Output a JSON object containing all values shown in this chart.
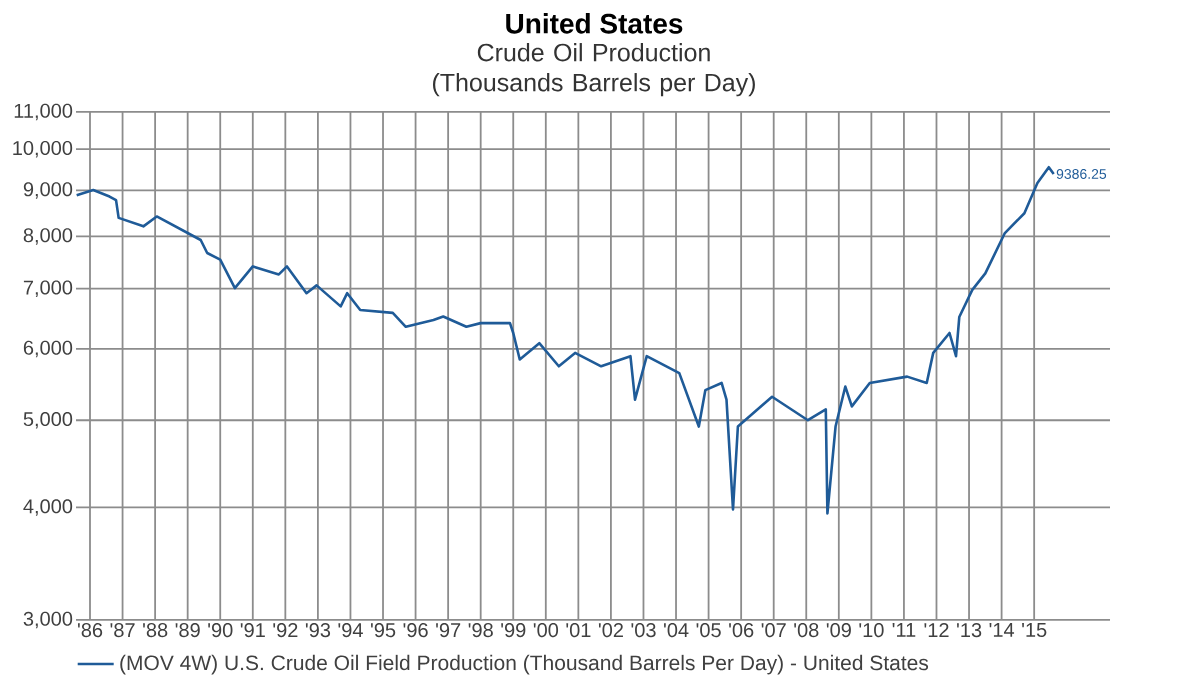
{
  "chart_data": {
    "type": "line",
    "title": "United States",
    "subtitle": "Crude Oil Production (Thousands Barrels per Day)",
    "x": [
      1985.59,
      1986.1,
      1986.6,
      1986.8,
      1986.88,
      1987.64,
      1988.05,
      1989.4,
      1989.6,
      1990.0,
      1990.45,
      1991.0,
      1991.8,
      1992.05,
      1992.65,
      1992.96,
      1993.7,
      1993.9,
      1994.3,
      1995.3,
      1995.7,
      1996.55,
      1996.85,
      1997.56,
      1998.0,
      1998.9,
      1999.0,
      1999.2,
      1999.8,
      2000.4,
      2000.9,
      2001.7,
      2002.6,
      2002.74,
      2003.1,
      2004.1,
      2004.7,
      2004.9,
      2005.4,
      2005.55,
      2005.75,
      2005.9,
      2006.95,
      2008.05,
      2008.6,
      2008.65,
      2008.9,
      2009.2,
      2009.4,
      2009.95,
      2011.1,
      2011.7,
      2011.9,
      2012.4,
      2012.6,
      2012.7,
      2013.1,
      2013.5,
      2014.1,
      2014.7,
      2015.1,
      2015.45,
      2015.6
    ],
    "series": [
      {
        "name": "(MOV 4W) U.S. Crude Oil Field Production (Thousand Barrels Per Day) - United States",
        "color": "#1f5b98",
        "values": [
          8890,
          9010,
          8860,
          8780,
          8390,
          8210,
          8420,
          7930,
          7670,
          7540,
          7010,
          7410,
          7260,
          7410,
          6920,
          7060,
          6690,
          6920,
          6630,
          6580,
          6350,
          6460,
          6520,
          6350,
          6410,
          6410,
          6250,
          5840,
          6090,
          5740,
          5940,
          5740,
          5890,
          5270,
          5890,
          5640,
          4920,
          5400,
          5500,
          5270,
          3980,
          4920,
          5310,
          5000,
          5140,
          3940,
          4920,
          5450,
          5180,
          5500,
          5590,
          5500,
          5940,
          6250,
          5890,
          6510,
          6980,
          7280,
          8070,
          8490,
          9170,
          9550,
          9386.25
        ]
      }
    ],
    "annotations": [
      {
        "text": "9386.25",
        "x": 2015.6,
        "y": 9386.25
      }
    ],
    "log": "y",
    "xlim": [
      1985.57,
      2017.33
    ],
    "ylim": [
      3000,
      11000
    ],
    "yticks": [
      {
        "value": 3000,
        "label": "3,000"
      },
      {
        "value": 4000,
        "label": "4,000"
      },
      {
        "value": 5000,
        "label": "5,000"
      },
      {
        "value": 6000,
        "label": "6,000"
      },
      {
        "value": 7000,
        "label": "7,000"
      },
      {
        "value": 8000,
        "label": "8,000"
      },
      {
        "value": 9000,
        "label": "9,000"
      },
      {
        "value": 10000,
        "label": "10,000"
      },
      {
        "value": 11000,
        "label": "11,000"
      }
    ],
    "xticks": [
      {
        "value": 1986,
        "label": "'86"
      },
      {
        "value": 1987,
        "label": "'87"
      },
      {
        "value": 1988,
        "label": "'88"
      },
      {
        "value": 1989,
        "label": "'89"
      },
      {
        "value": 1990,
        "label": "'90"
      },
      {
        "value": 1991,
        "label": "'91"
      },
      {
        "value": 1992,
        "label": "'92"
      },
      {
        "value": 1993,
        "label": "'93"
      },
      {
        "value": 1994,
        "label": "'94"
      },
      {
        "value": 1995,
        "label": "'95"
      },
      {
        "value": 1996,
        "label": "'96"
      },
      {
        "value": 1997,
        "label": "'97"
      },
      {
        "value": 1998,
        "label": "'98"
      },
      {
        "value": 1999,
        "label": "'99"
      },
      {
        "value": 2000,
        "label": "'00"
      },
      {
        "value": 2001,
        "label": "'01"
      },
      {
        "value": 2002,
        "label": "'02"
      },
      {
        "value": 2003,
        "label": "'03"
      },
      {
        "value": 2004,
        "label": "'04"
      },
      {
        "value": 2005,
        "label": "'05"
      },
      {
        "value": 2006,
        "label": "'06"
      },
      {
        "value": 2007,
        "label": "'07"
      },
      {
        "value": 2008,
        "label": "'08"
      },
      {
        "value": 2009,
        "label": "'09"
      },
      {
        "value": 2010,
        "label": "'10"
      },
      {
        "value": 2011,
        "label": "'11"
      },
      {
        "value": 2012,
        "label": "'12"
      },
      {
        "value": 2013,
        "label": "'13"
      },
      {
        "value": 2014,
        "label": "'14"
      },
      {
        "value": 2015,
        "label": "'15"
      }
    ],
    "grid": true,
    "legend": "bottom",
    "marker": "none",
    "line_style": "solid"
  }
}
